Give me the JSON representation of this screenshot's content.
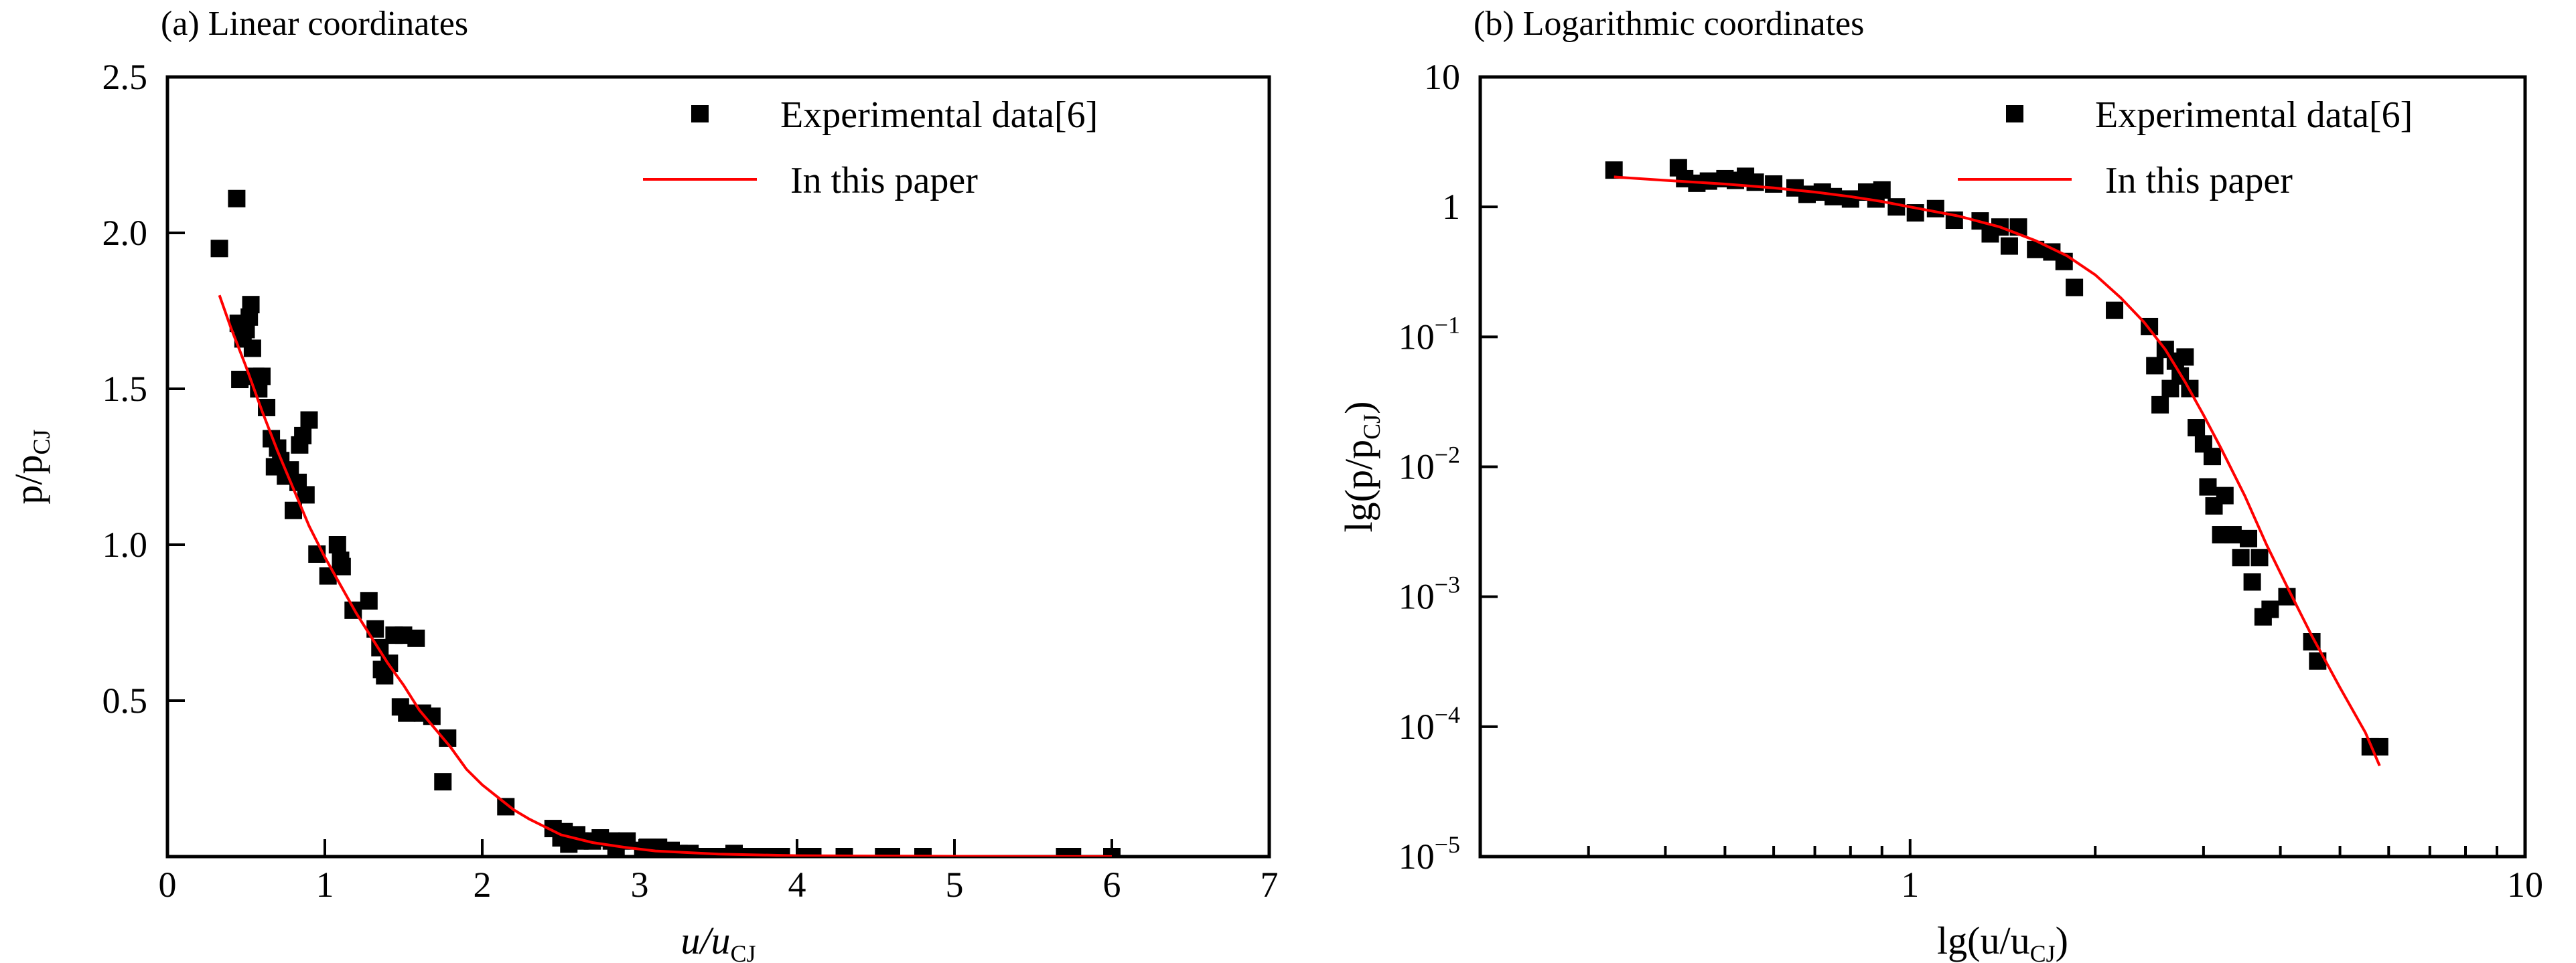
{
  "chart_data": [
    {
      "type": "scatter",
      "panel_title": "(a) Linear coordinates",
      "x_scale": "linear",
      "y_scale": "linear",
      "xlabel": {
        "main": "u/u",
        "subscript": "CJ"
      },
      "ylabel": {
        "main": "p/p",
        "subscript": "CJ"
      },
      "xlim": [
        0,
        7
      ],
      "ylim": [
        0,
        2.5
      ],
      "xticks": [
        0,
        1,
        2,
        3,
        4,
        5,
        6,
        7
      ],
      "xtick_labels": [
        "0",
        "1",
        "2",
        "3",
        "4",
        "5",
        "6",
        "7"
      ],
      "yticks": [
        0.5,
        1.0,
        1.5,
        2.0,
        2.5
      ],
      "ytick_labels": [
        "0.5",
        "1.0",
        "1.5",
        "2.0",
        "2.5"
      ],
      "grid": false,
      "legend": {
        "position": "top-right",
        "entries": [
          {
            "label": "Experimental data[6]",
            "marker": "square",
            "color": "#000000"
          },
          {
            "label": "In this paper",
            "marker": "line",
            "color": "#ff0000"
          }
        ]
      },
      "series": [
        {
          "name": "Experimental data[6]",
          "kind": "scatter",
          "color": "#000000",
          "points": [
            [
              0.33,
              1.95
            ],
            [
              0.44,
              2.11
            ],
            [
              0.45,
              1.71
            ],
            [
              0.46,
              1.53
            ],
            [
              0.48,
              1.66
            ],
            [
              0.5,
              1.69
            ],
            [
              0.52,
              1.73
            ],
            [
              0.53,
              1.77
            ],
            [
              0.54,
              1.63
            ],
            [
              0.56,
              1.54
            ],
            [
              0.6,
              1.54
            ],
            [
              0.58,
              1.5
            ],
            [
              0.63,
              1.44
            ],
            [
              0.66,
              1.34
            ],
            [
              0.68,
              1.25
            ],
            [
              0.7,
              1.31
            ],
            [
              0.72,
              1.27
            ],
            [
              0.75,
              1.22
            ],
            [
              0.78,
              1.24
            ],
            [
              0.8,
              1.11
            ],
            [
              0.83,
              1.2
            ],
            [
              0.84,
              1.32
            ],
            [
              0.86,
              1.35
            ],
            [
              0.88,
              1.16
            ],
            [
              0.9,
              1.4
            ],
            [
              0.95,
              0.97
            ],
            [
              1.02,
              0.9
            ],
            [
              1.08,
              1.0
            ],
            [
              1.1,
              0.95
            ],
            [
              1.11,
              0.93
            ],
            [
              1.18,
              0.79
            ],
            [
              1.28,
              0.82
            ],
            [
              1.32,
              0.73
            ],
            [
              1.35,
              0.67
            ],
            [
              1.36,
              0.6
            ],
            [
              1.38,
              0.58
            ],
            [
              1.41,
              0.62
            ],
            [
              1.44,
              0.71
            ],
            [
              1.48,
              0.48
            ],
            [
              1.5,
              0.71
            ],
            [
              1.52,
              0.46
            ],
            [
              1.58,
              0.7
            ],
            [
              1.62,
              0.46
            ],
            [
              1.68,
              0.45
            ],
            [
              1.75,
              0.24
            ],
            [
              1.78,
              0.38
            ],
            [
              2.15,
              0.16
            ],
            [
              2.45,
              0.09
            ],
            [
              2.5,
              0.06
            ],
            [
              2.52,
              0.08
            ],
            [
              2.55,
              0.04
            ],
            [
              2.6,
              0.07
            ],
            [
              2.62,
              0.05
            ],
            [
              2.7,
              0.05
            ],
            [
              2.75,
              0.06
            ],
            [
              2.82,
              0.05
            ],
            [
              2.85,
              0.03
            ],
            [
              2.92,
              0.05
            ],
            [
              3.02,
              0.02
            ],
            [
              3.05,
              0.03
            ],
            [
              3.1,
              0.01
            ],
            [
              3.12,
              0.03
            ],
            [
              3.2,
              0.02
            ],
            [
              3.25,
              0.01
            ],
            [
              3.32,
              0.01
            ],
            [
              3.42,
              0.0
            ],
            [
              3.5,
              0.0
            ],
            [
              3.6,
              0.01
            ],
            [
              3.7,
              0.0
            ],
            [
              3.8,
              0.0
            ],
            [
              3.9,
              0.0
            ],
            [
              4.05,
              0.0
            ],
            [
              4.1,
              0.0
            ],
            [
              4.3,
              0.0
            ],
            [
              4.55,
              0.0
            ],
            [
              4.6,
              0.0
            ],
            [
              4.8,
              0.0
            ],
            [
              5.7,
              0.0
            ],
            [
              5.75,
              0.0
            ],
            [
              6.0,
              0.0
            ]
          ]
        },
        {
          "name": "In this paper",
          "kind": "line",
          "color": "#ff0000",
          "points": [
            [
              0.33,
              1.8
            ],
            [
              0.4,
              1.7
            ],
            [
              0.5,
              1.57
            ],
            [
              0.6,
              1.43
            ],
            [
              0.7,
              1.3
            ],
            [
              0.8,
              1.18
            ],
            [
              0.9,
              1.06
            ],
            [
              1.0,
              0.96
            ],
            [
              1.1,
              0.87
            ],
            [
              1.2,
              0.78
            ],
            [
              1.3,
              0.7
            ],
            [
              1.4,
              0.62
            ],
            [
              1.5,
              0.55
            ],
            [
              1.6,
              0.47
            ],
            [
              1.7,
              0.41
            ],
            [
              1.8,
              0.35
            ],
            [
              1.9,
              0.28
            ],
            [
              2.0,
              0.23
            ],
            [
              2.1,
              0.19
            ],
            [
              2.2,
              0.15
            ],
            [
              2.3,
              0.12
            ],
            [
              2.5,
              0.07
            ],
            [
              2.7,
              0.045
            ],
            [
              2.9,
              0.03
            ],
            [
              3.1,
              0.018
            ],
            [
              3.5,
              0.008
            ],
            [
              4.0,
              0.003
            ],
            [
              4.5,
              0.002
            ],
            [
              5.0,
              0.001
            ],
            [
              5.5,
              0.0005
            ],
            [
              6.0,
              0.0003
            ]
          ]
        }
      ]
    },
    {
      "type": "scatter",
      "panel_title": "(b) Logarithmic coordinates",
      "x_scale": "log",
      "y_scale": "log",
      "xlabel": {
        "main": "lg(u/u",
        "subscript": "CJ",
        "suffix": ")"
      },
      "ylabel": {
        "main": "lg(p/p",
        "subscript": "CJ",
        "suffix": ")"
      },
      "xlim": [
        0.2,
        10
      ],
      "ylim": [
        1e-05,
        10
      ],
      "xticks": [
        1,
        10
      ],
      "xtick_labels": [
        "1",
        "10"
      ],
      "xminor_ticks": [
        0.3,
        0.4,
        0.5,
        0.6,
        0.7,
        0.8,
        0.9,
        2,
        3,
        4,
        5,
        6,
        7,
        8,
        9
      ],
      "yticks": [
        1e-05,
        0.0001,
        0.001,
        0.01,
        0.1,
        1,
        10
      ],
      "ytick_labels": [
        {
          "base": "10",
          "exp": "−5"
        },
        {
          "base": "10",
          "exp": "−4"
        },
        {
          "base": "10",
          "exp": "−3"
        },
        {
          "base": "10",
          "exp": "−2"
        },
        {
          "base": "10",
          "exp": "−1"
        },
        {
          "base": "1",
          "exp": ""
        },
        {
          "base": "10",
          "exp": ""
        }
      ],
      "grid": false,
      "legend": {
        "position": "top-right",
        "entries": [
          {
            "label": "Experimental data[6]",
            "marker": "square",
            "color": "#000000"
          },
          {
            "label": "In this paper",
            "marker": "line",
            "color": "#ff0000"
          }
        ]
      },
      "series": [
        {
          "name": "Experimental data[6]",
          "kind": "scatter",
          "color": "#000000",
          "points": [
            [
              0.33,
              1.92
            ],
            [
              0.42,
              2.0
            ],
            [
              0.43,
              1.65
            ],
            [
              0.45,
              1.52
            ],
            [
              0.47,
              1.58
            ],
            [
              0.5,
              1.65
            ],
            [
              0.52,
              1.6
            ],
            [
              0.54,
              1.72
            ],
            [
              0.56,
              1.55
            ],
            [
              0.6,
              1.5
            ],
            [
              0.65,
              1.4
            ],
            [
              0.68,
              1.25
            ],
            [
              0.72,
              1.3
            ],
            [
              0.75,
              1.2
            ],
            [
              0.8,
              1.15
            ],
            [
              0.85,
              1.3
            ],
            [
              0.88,
              1.15
            ],
            [
              0.9,
              1.35
            ],
            [
              0.95,
              1.0
            ],
            [
              1.02,
              0.9
            ],
            [
              1.1,
              0.97
            ],
            [
              1.18,
              0.79
            ],
            [
              1.3,
              0.78
            ],
            [
              1.35,
              0.62
            ],
            [
              1.4,
              0.7
            ],
            [
              1.45,
              0.5
            ],
            [
              1.5,
              0.7
            ],
            [
              1.6,
              0.47
            ],
            [
              1.7,
              0.45
            ],
            [
              1.78,
              0.38
            ],
            [
              1.85,
              0.24
            ],
            [
              2.15,
              0.16
            ],
            [
              2.45,
              0.12
            ],
            [
              2.5,
              0.06
            ],
            [
              2.55,
              0.03
            ],
            [
              2.6,
              0.08
            ],
            [
              2.65,
              0.04
            ],
            [
              2.7,
              0.065
            ],
            [
              2.75,
              0.05
            ],
            [
              2.8,
              0.07
            ],
            [
              2.85,
              0.04
            ],
            [
              2.92,
              0.02
            ],
            [
              3.0,
              0.015
            ],
            [
              3.05,
              0.007
            ],
            [
              3.1,
              0.012
            ],
            [
              3.12,
              0.005
            ],
            [
              3.2,
              0.003
            ],
            [
              3.25,
              0.006
            ],
            [
              3.35,
              0.003
            ],
            [
              3.45,
              0.002
            ],
            [
              3.55,
              0.0028
            ],
            [
              3.6,
              0.0013
            ],
            [
              3.7,
              0.002
            ],
            [
              3.75,
              0.0007
            ],
            [
              3.85,
              0.0008
            ],
            [
              4.1,
              0.001
            ],
            [
              4.5,
              0.00045
            ],
            [
              4.6,
              0.00032
            ],
            [
              5.6,
              7e-05
            ],
            [
              5.8,
              7e-05
            ]
          ]
        },
        {
          "name": "In this paper",
          "kind": "line",
          "color": "#ff0000",
          "points": [
            [
              0.33,
              1.7
            ],
            [
              0.4,
              1.6
            ],
            [
              0.5,
              1.5
            ],
            [
              0.6,
              1.4
            ],
            [
              0.7,
              1.3
            ],
            [
              0.8,
              1.2
            ],
            [
              0.9,
              1.1
            ],
            [
              1.0,
              1.0
            ],
            [
              1.2,
              0.85
            ],
            [
              1.4,
              0.7
            ],
            [
              1.6,
              0.55
            ],
            [
              1.8,
              0.42
            ],
            [
              2.0,
              0.3
            ],
            [
              2.2,
              0.2
            ],
            [
              2.4,
              0.13
            ],
            [
              2.6,
              0.08
            ],
            [
              2.8,
              0.045
            ],
            [
              3.0,
              0.025
            ],
            [
              3.2,
              0.014
            ],
            [
              3.5,
              0.006
            ],
            [
              3.8,
              0.0025
            ],
            [
              4.1,
              0.0012
            ],
            [
              4.5,
              0.0005
            ],
            [
              5.0,
              0.0002
            ],
            [
              5.5,
              9e-05
            ],
            [
              5.8,
              5e-05
            ]
          ]
        }
      ]
    }
  ]
}
